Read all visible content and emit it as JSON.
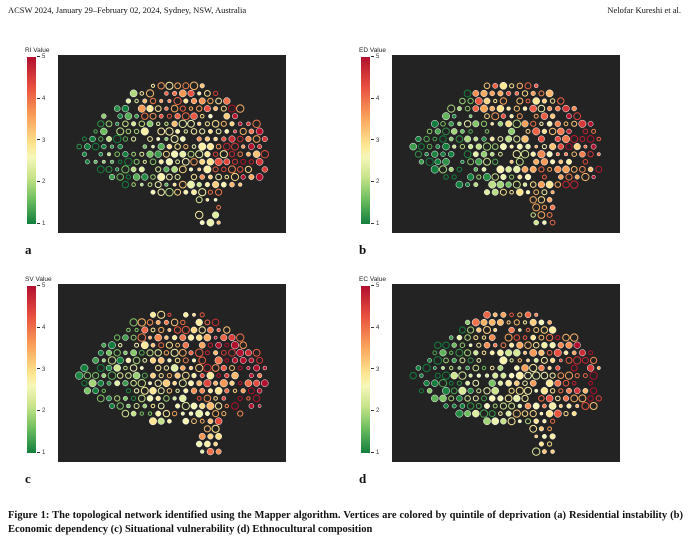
{
  "running_head": {
    "left": "ACSW 2024, January 29–February 02, 2024, Sydney, NSW, Australia",
    "right": "Nelofar Kureshi et al."
  },
  "colorbar": {
    "ticks": [
      "5",
      "4",
      "3",
      "2",
      "1"
    ],
    "stops": [
      "#b10f2e",
      "#e8503f",
      "#f9a25a",
      "#fde48f",
      "#f6f7b8",
      "#c8e48a",
      "#6fbf5f",
      "#137f3e"
    ],
    "range": [
      1,
      5
    ]
  },
  "panels": [
    {
      "letter": "a",
      "cbar_title": "RI Value",
      "seed": 11
    },
    {
      "letter": "b",
      "cbar_title": "ED Value",
      "seed": 23
    },
    {
      "letter": "c",
      "cbar_title": "SV Value",
      "seed": 37
    },
    {
      "letter": "d",
      "cbar_title": "EC Value",
      "seed": 53
    }
  ],
  "caption": "Figure 1: The topological network identified using the Mapper algorithm. Vertices are colored by quintile of deprivation (a) Residential instability (b) Economic dependency (c) Situational vulnerability (d) Ethnocultural composition"
}
